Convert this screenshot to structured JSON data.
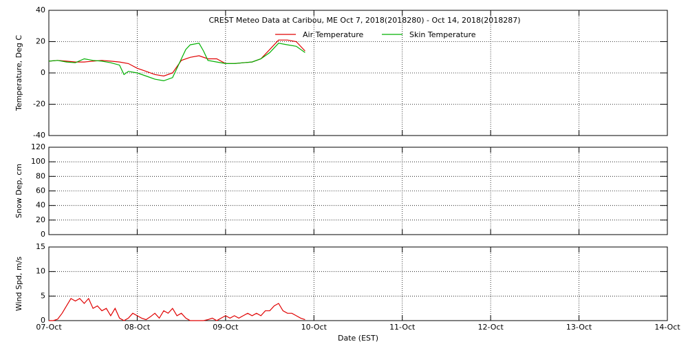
{
  "chart_data": [
    {
      "type": "line",
      "title": "CREST Meteo Data at Caribou, ME   Oct  7, 2018(2018280) - Oct 14, 2018(2018287)",
      "ylabel": "Temperature, Deg C",
      "ylim": [
        -40,
        40
      ],
      "yticks": [
        -40,
        -20,
        0,
        20,
        40
      ],
      "grid": true,
      "legend": "top",
      "series": [
        {
          "name": "Air Temperature",
          "color": "#e00000",
          "x": [
            0,
            0.1,
            0.2,
            0.3,
            0.4,
            0.5,
            0.6,
            0.7,
            0.8,
            0.9,
            1.0,
            1.1,
            1.2,
            1.3,
            1.4,
            1.5,
            1.6,
            1.7,
            1.8,
            1.9,
            2.0,
            2.1,
            2.2,
            2.3,
            2.4,
            2.5,
            2.6,
            2.7,
            2.8,
            2.9
          ],
          "values": [
            7.5,
            8,
            7.5,
            7,
            7,
            7.5,
            8,
            7.5,
            7,
            6,
            3,
            1,
            -1,
            -2,
            0,
            8,
            10,
            11,
            9,
            9,
            6,
            6,
            6.5,
            7,
            9,
            15,
            21,
            21,
            20,
            14
          ]
        },
        {
          "name": "Skin Temperature",
          "color": "#00b000",
          "x": [
            0,
            0.1,
            0.2,
            0.3,
            0.4,
            0.5,
            0.6,
            0.7,
            0.8,
            0.85,
            0.9,
            1.0,
            1.1,
            1.2,
            1.3,
            1.4,
            1.45,
            1.5,
            1.55,
            1.6,
            1.7,
            1.75,
            1.8,
            1.9,
            2.0,
            2.1,
            2.2,
            2.3,
            2.4,
            2.5,
            2.6,
            2.7,
            2.8,
            2.9
          ],
          "values": [
            7.5,
            8,
            7,
            6.5,
            9,
            8,
            7.5,
            6.5,
            5,
            -1,
            1,
            0,
            -2,
            -4,
            -5,
            -3,
            3,
            9,
            15,
            18,
            19,
            14,
            8,
            7,
            6,
            6,
            6.5,
            7,
            9,
            13,
            19,
            18,
            17,
            13
          ]
        }
      ]
    },
    {
      "type": "line",
      "ylabel": "Snow Dep, cm",
      "ylim": [
        0,
        120
      ],
      "yticks": [
        0,
        20,
        40,
        60,
        80,
        100,
        120
      ],
      "grid": true,
      "series": []
    },
    {
      "type": "line",
      "ylabel": "Wind Spd, m/s",
      "xlabel": "Date (EST)",
      "ylim": [
        0,
        15
      ],
      "yticks": [
        0,
        5,
        10,
        15
      ],
      "grid": true,
      "xlim": [
        0,
        7
      ],
      "xticks": [
        {
          "value": 0,
          "label": "07-Oct"
        },
        {
          "value": 1,
          "label": "08-Oct"
        },
        {
          "value": 2,
          "label": "09-Oct"
        },
        {
          "value": 3,
          "label": "10-Oct"
        },
        {
          "value": 4,
          "label": "11-Oct"
        },
        {
          "value": 5,
          "label": "12-Oct"
        },
        {
          "value": 6,
          "label": "13-Oct"
        },
        {
          "value": 7,
          "label": "14-Oct"
        }
      ],
      "series": [
        {
          "color": "#e00000",
          "x": [
            0,
            0.05,
            0.1,
            0.15,
            0.2,
            0.25,
            0.3,
            0.35,
            0.4,
            0.45,
            0.5,
            0.55,
            0.6,
            0.65,
            0.7,
            0.75,
            0.8,
            0.85,
            0.9,
            0.95,
            1.0,
            1.05,
            1.1,
            1.15,
            1.2,
            1.25,
            1.3,
            1.35,
            1.4,
            1.45,
            1.5,
            1.55,
            1.6,
            1.65,
            1.7,
            1.75,
            1.8,
            1.85,
            1.9,
            1.95,
            2.0,
            2.05,
            2.1,
            2.15,
            2.2,
            2.25,
            2.3,
            2.35,
            2.4,
            2.45,
            2.5,
            2.55,
            2.6,
            2.65,
            2.7,
            2.75,
            2.8,
            2.85,
            2.9
          ],
          "values": [
            0,
            0,
            0.3,
            1.5,
            3,
            4.5,
            4,
            4.5,
            3.5,
            4.5,
            2.5,
            3,
            2,
            2.5,
            1,
            2.5,
            0.5,
            0,
            0.5,
            1.5,
            1,
            0.5,
            0.2,
            0.8,
            1.5,
            0.5,
            2,
            1.5,
            2.5,
            1,
            1.5,
            0.5,
            0,
            0,
            0,
            0,
            0.2,
            0.5,
            0,
            0.5,
            1,
            0.5,
            1,
            0.5,
            1,
            1.5,
            1,
            1.5,
            1,
            2,
            2,
            3,
            3.5,
            2,
            1.5,
            1.5,
            1,
            0.5,
            0.2
          ]
        }
      ]
    }
  ]
}
